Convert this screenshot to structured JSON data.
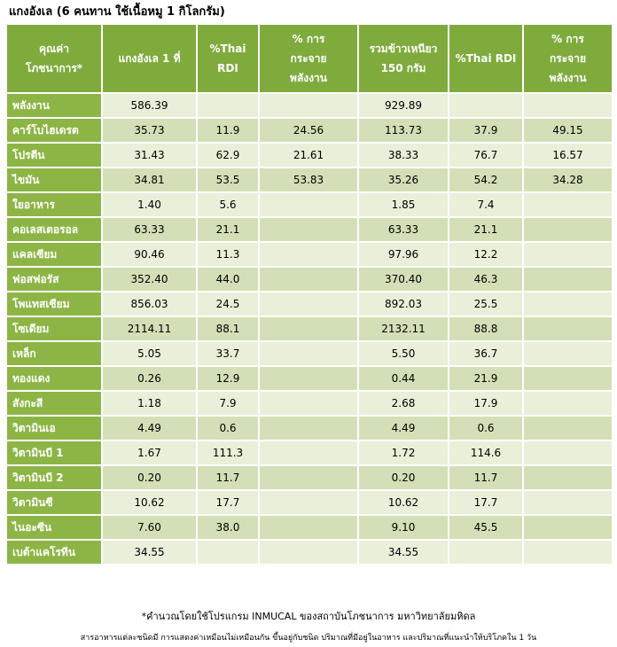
{
  "title": "แกงอังเล (6 คนทาน ใช้เนื้อหมู 1 กิโลกรัม)",
  "headers": [
    [
      "คุณค่า",
      "โภชนาการ*"
    ],
    [
      "แกงอังเล 1 ที่"
    ],
    [
      "%Thai",
      "RDI"
    ],
    [
      "% การ",
      "กระจาย",
      "พลังงาน"
    ],
    [
      "รวมข้าวเหนียว",
      "150 กรัม"
    ],
    [
      "%Thai RDI"
    ],
    [
      "% การ",
      "กระจาย",
      "พลังงาน"
    ]
  ],
  "rows": [
    {
      "label": "พลังงาน",
      "cells": [
        "586.39",
        "",
        "",
        "929.89",
        "",
        ""
      ]
    },
    {
      "label": "คาร์โบไฮเดรต",
      "cells": [
        "35.73",
        "11.9",
        "24.56",
        "113.73",
        "37.9",
        "49.15"
      ]
    },
    {
      "label": "โปรตีน",
      "cells": [
        "31.43",
        "62.9",
        "21.61",
        "38.33",
        "76.7",
        "16.57"
      ]
    },
    {
      "label": "ไขมัน",
      "cells": [
        "34.81",
        "53.5",
        "53.83",
        "35.26",
        "54.2",
        "34.28"
      ]
    },
    {
      "label": "ใยอาหาร",
      "cells": [
        "1.40",
        "5.6",
        "",
        "1.85",
        "7.4",
        ""
      ]
    },
    {
      "label": "คอเลสเตอรอล",
      "cells": [
        "63.33",
        "21.1",
        "",
        "63.33",
        "21.1",
        ""
      ]
    },
    {
      "label": "แคลเซียม",
      "cells": [
        "90.46",
        "11.3",
        "",
        "97.96",
        "12.2",
        ""
      ]
    },
    {
      "label": "ฟอสฟอรัส",
      "cells": [
        "352.40",
        "44.0",
        "",
        "370.40",
        "46.3",
        ""
      ]
    },
    {
      "label": "โพแทสเซียม",
      "cells": [
        "856.03",
        "24.5",
        "",
        "892.03",
        "25.5",
        ""
      ]
    },
    {
      "label": "โซเดียม",
      "cells": [
        "2114.11",
        "88.1",
        "",
        "2132.11",
        "88.8",
        ""
      ]
    },
    {
      "label": "เหล็ก",
      "cells": [
        "5.05",
        "33.7",
        "",
        "5.50",
        "36.7",
        ""
      ]
    },
    {
      "label": "ทองแดง",
      "cells": [
        "0.26",
        "12.9",
        "",
        "0.44",
        "21.9",
        ""
      ]
    },
    {
      "label": "สังกะสี",
      "cells": [
        "1.18",
        "7.9",
        "",
        "2.68",
        "17.9",
        ""
      ]
    },
    {
      "label": "วิตามินเอ",
      "cells": [
        "4.49",
        "0.6",
        "",
        "4.49",
        "0.6",
        ""
      ]
    },
    {
      "label": "วิตามินบี 1",
      "cells": [
        "1.67",
        "111.3",
        "",
        "1.72",
        "114.6",
        ""
      ]
    },
    {
      "label": "วิตามินบี 2",
      "cells": [
        "0.20",
        "11.7",
        "",
        "0.20",
        "11.7",
        ""
      ]
    },
    {
      "label": "วิตามินซี",
      "cells": [
        "10.62",
        "17.7",
        "",
        "10.62",
        "17.7",
        ""
      ]
    },
    {
      "label": "ไนอะซีน",
      "cells": [
        "7.60",
        "38.0",
        "",
        "9.10",
        "45.5",
        ""
      ]
    },
    {
      "label": "เบต้าแคโรทีน",
      "cells": [
        "34.55",
        "",
        "",
        "34.55",
        "",
        ""
      ]
    }
  ],
  "footnote_1": "*คำนวณโดยใช้โปรแกรม INMUCAL ของสถาบันโภชนาการ มหาวิทยาลัยมหิดล",
  "footnote_2": "สารอาหารแต่ละชนิดมี การแสดงค่าเหมือนไม่เหมือนกัน ขึ้นอยู่กับชนิด ปริมาณที่มีอยู่ในอาหาร และปริมาณที่แนะนำให้บริโภคใน 1 วัน",
  "colors": {
    "header": "#7fab3d",
    "label": "#8db545",
    "row_light": "#e9efd9",
    "row_dark": "#d3dfb6"
  }
}
